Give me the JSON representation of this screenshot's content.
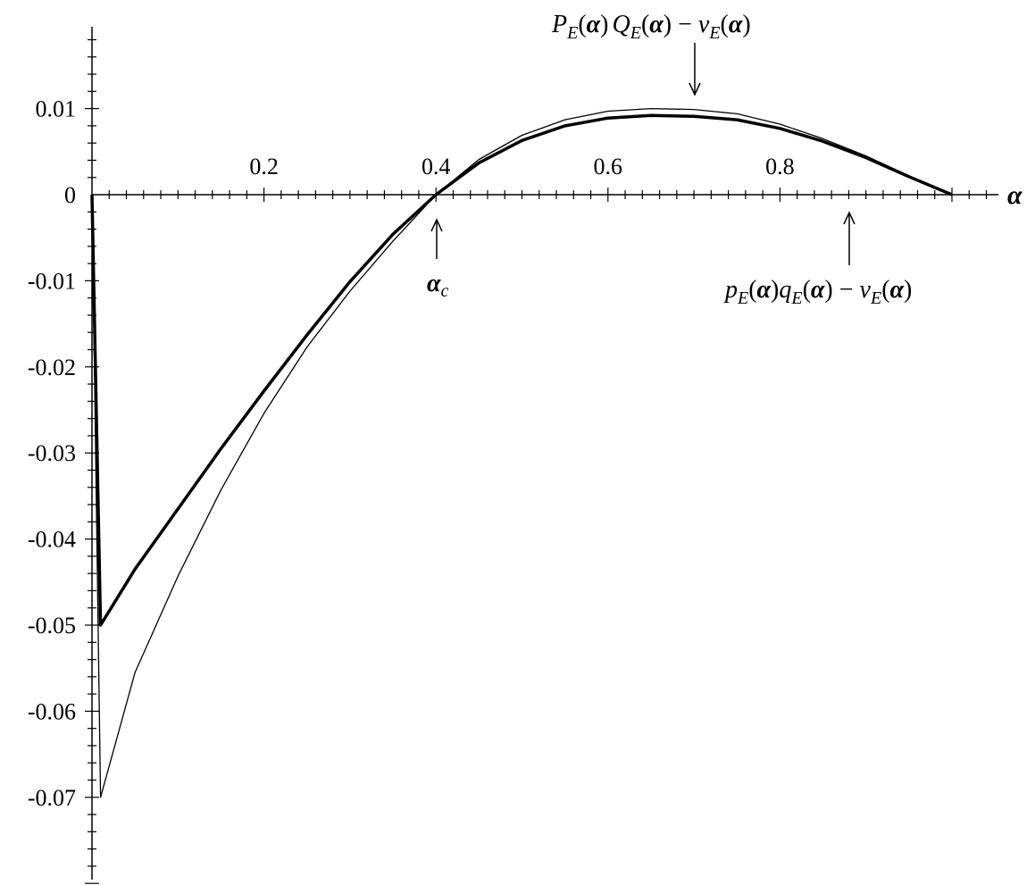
{
  "chart_data": {
    "type": "line",
    "title": "",
    "xlabel": "α",
    "ylabel": "",
    "xlim": [
      0,
      1.05
    ],
    "ylim": [
      -0.085,
      0.02
    ],
    "grid": false,
    "legend": "none",
    "x_ticks": [
      {
        "value": 0.2,
        "label": "0.2"
      },
      {
        "value": 0.4,
        "label": "0.4"
      },
      {
        "value": 0.6,
        "label": "0.6"
      },
      {
        "value": 0.8,
        "label": "0.8"
      }
    ],
    "y_ticks": [
      {
        "value": 0.01,
        "label": "0.01"
      },
      {
        "value": 0,
        "label": "0"
      },
      {
        "value": -0.01,
        "label": "-0.01"
      },
      {
        "value": -0.02,
        "label": "-0.02"
      },
      {
        "value": -0.03,
        "label": "-0.03"
      },
      {
        "value": -0.04,
        "label": "-0.04"
      },
      {
        "value": -0.05,
        "label": "-0.05"
      },
      {
        "value": -0.06,
        "label": "-0.06"
      },
      {
        "value": -0.07,
        "label": "-0.07"
      }
    ],
    "series": [
      {
        "style": "thick",
        "x": [
          0.0,
          0.01,
          0.05,
          0.1,
          0.15,
          0.2,
          0.25,
          0.3,
          0.35,
          0.4,
          0.45,
          0.5,
          0.55,
          0.6,
          0.65,
          0.7,
          0.75,
          0.8,
          0.85,
          0.9,
          0.95,
          1.0
        ],
        "y": [
          0.0,
          -0.05,
          -0.0435,
          -0.0365,
          -0.0295,
          -0.0228,
          -0.0163,
          -0.0101,
          -0.0046,
          0.0,
          0.0037,
          0.0063,
          0.008,
          0.0089,
          0.0092,
          0.0091,
          0.0087,
          0.0077,
          0.0062,
          0.0043,
          0.0021,
          0.0
        ]
      },
      {
        "style": "thin",
        "x": [
          0.0,
          0.01,
          0.05,
          0.1,
          0.15,
          0.2,
          0.25,
          0.3,
          0.35,
          0.4,
          0.45,
          0.5,
          0.55,
          0.6,
          0.65,
          0.7,
          0.75,
          0.8,
          0.85,
          0.9,
          0.95,
          1.0
        ],
        "y": [
          0.0,
          -0.07,
          -0.0555,
          -0.0443,
          -0.0343,
          -0.0254,
          -0.0177,
          -0.0112,
          -0.0054,
          0.0,
          0.0041,
          0.0069,
          0.0087,
          0.0097,
          0.01,
          0.0099,
          0.0094,
          0.0082,
          0.0065,
          0.0045,
          0.0022,
          0.0
        ]
      }
    ],
    "annotations": [
      {
        "text": "P_E(α) Q_E(α) − v_E(α)",
        "x": 0.7,
        "y": 0.0092,
        "direction": "down"
      },
      {
        "text": "α_c",
        "x": 0.4,
        "y": 0.0,
        "direction": "up"
      },
      {
        "text": "p_E(α) q_E(α) − v_E(α)",
        "x": 0.88,
        "y": 0.0,
        "direction": "up"
      }
    ]
  },
  "labels": {
    "upper_formula": {
      "P": "P",
      "E1": "E",
      "open1": "(",
      "alpha1": "α",
      "close1": ")",
      "Q": "Q",
      "E2": "E",
      "open2": "(",
      "alpha2": "α",
      "close2": ")",
      "minus": " − ",
      "v": "v",
      "E3": "E",
      "open3": "(",
      "alpha3": "α",
      "close3": ")"
    },
    "lower_formula": {
      "p": "p",
      "E1": "E",
      "open1": "(",
      "alpha1": "α",
      "close1": ")",
      "q": "q",
      "E2": "E",
      "open2": "(",
      "alpha2": "α",
      "close2": ")",
      "minus": " − ",
      "v": "v",
      "E3": "E",
      "open3": "(",
      "alpha3": "α",
      "close3": ")"
    },
    "alpha_c": {
      "alpha": "α",
      "c": "c"
    }
  }
}
